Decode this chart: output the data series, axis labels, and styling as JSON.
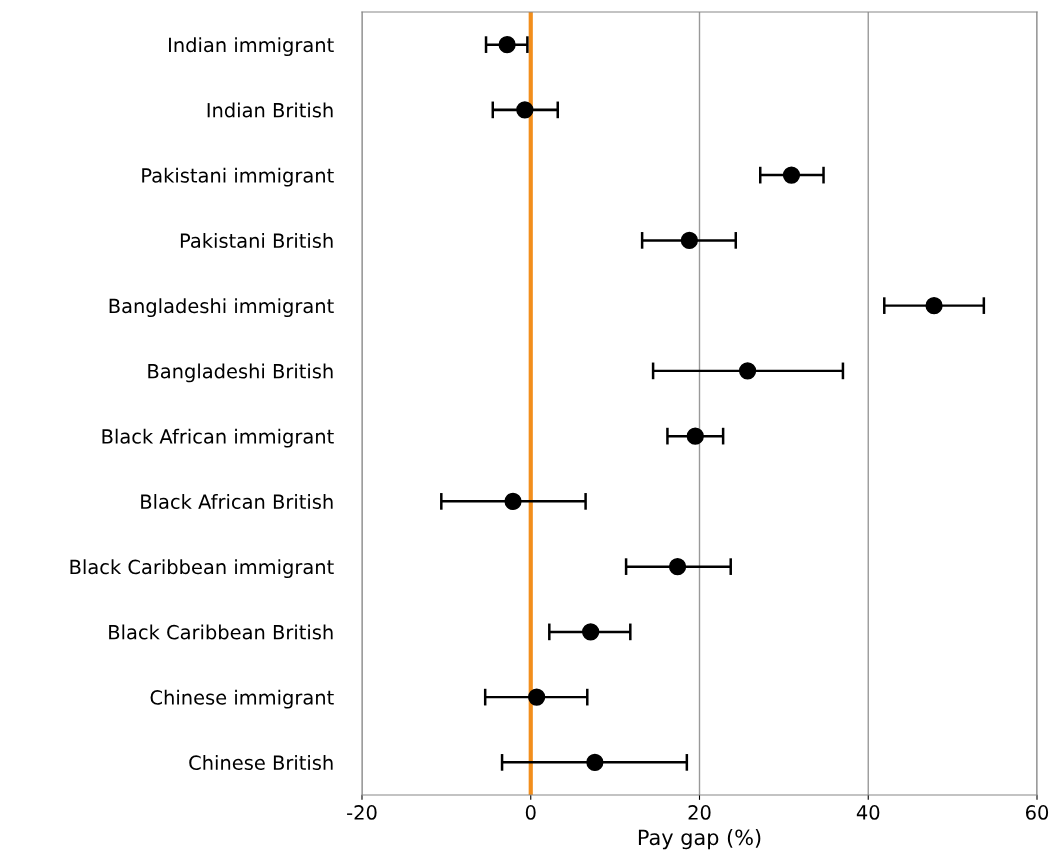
{
  "chart_data": {
    "type": "scatter",
    "orientation": "horizontal",
    "xlabel": "Pay gap (%)",
    "categories": [
      "Indian immigrant",
      "Indian British",
      "Pakistani immigrant",
      "Pakistani British",
      "Bangladeshi immigrant",
      "Bangladeshi British",
      "Black African immigrant",
      "Black African British",
      "Black Caribbean immigrant",
      "Black Caribbean British",
      "Chinese immigrant",
      "Chinese British"
    ],
    "series": [
      {
        "color": "#000000",
        "values": [
          -2.8,
          -0.7,
          30.9,
          18.8,
          47.8,
          25.7,
          19.5,
          -2.1,
          17.4,
          7.1,
          0.7,
          7.6
        ],
        "errors": [
          [
            -5.3,
            -0.4
          ],
          [
            -4.5,
            3.2
          ],
          [
            27.2,
            34.7
          ],
          [
            13.2,
            24.3
          ],
          [
            41.9,
            53.7
          ],
          [
            14.5,
            37.0
          ],
          [
            16.2,
            22.8
          ],
          [
            -10.6,
            6.5
          ],
          [
            11.3,
            23.7
          ],
          [
            2.2,
            11.8
          ],
          [
            -5.4,
            6.7
          ],
          [
            -3.4,
            18.5
          ]
        ]
      }
    ],
    "xlim": [
      -20,
      60
    ],
    "xticks": [
      -20,
      0,
      20,
      40,
      60
    ],
    "grid": "x",
    "marker": "circle",
    "ref_lines": [
      {
        "axis": "x",
        "value": 0,
        "color": "#f28e1c"
      }
    ]
  }
}
